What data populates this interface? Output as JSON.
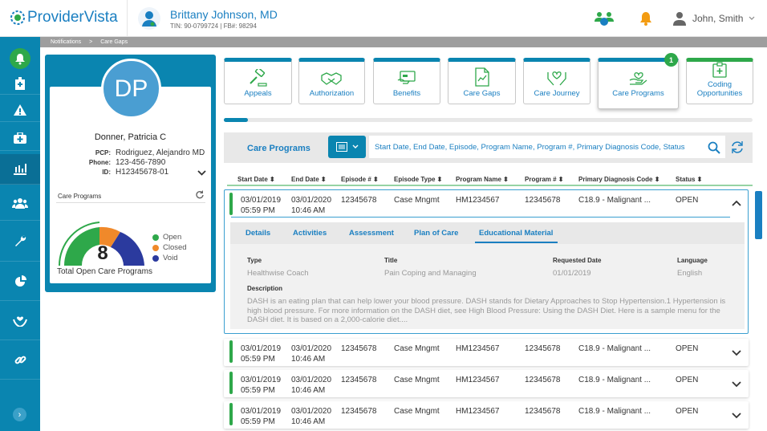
{
  "app": {
    "name": "ProviderVista"
  },
  "provider": {
    "name": "Brittany Johnson, MD",
    "ids": "TIN: 90-0799724 | FB#: 98294"
  },
  "user": {
    "name": "John, Smith"
  },
  "breadcrumb": [
    "Notifications",
    ">",
    "Care Gaps"
  ],
  "patient": {
    "initials": "DP",
    "name": "Donner, Patricia C",
    "pcp_label": "PCP:",
    "pcp": "Rodriguez, Alejandro MD",
    "phone_label": "Phone:",
    "phone": "123-456-7890",
    "id_label": "ID:",
    "id": "H12345678-01"
  },
  "care_programs_widget": {
    "title": "Care Programs",
    "total": "8",
    "total_label": "Total Open Care Programs",
    "legend": [
      {
        "label": "Open",
        "color": "#2ea84a"
      },
      {
        "label": "Closed",
        "color": "#f0892a"
      },
      {
        "label": "Void",
        "color": "#2b3a9e"
      }
    ]
  },
  "tabs": [
    {
      "label": "Appeals",
      "icon": "gavel-icon"
    },
    {
      "label": "Authorization",
      "icon": "handshake-icon"
    },
    {
      "label": "Benefits",
      "icon": "card-icon"
    },
    {
      "label": "Care Gaps",
      "icon": "document-chart-icon"
    },
    {
      "label": "Care Journey",
      "icon": "hands-icon"
    },
    {
      "label": "Care Programs",
      "icon": "heart-hand-icon"
    },
    {
      "label": "Coding Opportunities",
      "icon": "clipboard-plus-icon"
    }
  ],
  "care_programs_badge": "1",
  "filter": {
    "title": "Care Programs",
    "search_placeholder": "Start Date, End Date, Episode, Program Name, Program #, Primary Diagnosis Code, Status"
  },
  "columns": [
    "Start Date ⬍",
    "End Date ⬍",
    "Episode # ⬍",
    "Episode Type ⬍",
    "Program Name ⬍",
    "Program # ⬍",
    "Primary Diagnosis Code ⬍",
    "Status ⬍"
  ],
  "rows": [
    {
      "start_date": "03/01/2019",
      "start_time": "05:59 PM",
      "end_date": "03/01/2020",
      "end_time": "10:46 AM",
      "episode": "12345678",
      "type": "Case Mngmt",
      "program_name": "HM1234567",
      "program_no": "12345678",
      "diag": "C18.9 - Malignant ...",
      "status": "OPEN"
    },
    {
      "start_date": "03/01/2019",
      "start_time": "05:59 PM",
      "end_date": "03/01/2020",
      "end_time": "10:46 AM",
      "episode": "12345678",
      "type": "Case Mngmt",
      "program_name": "HM1234567",
      "program_no": "12345678",
      "diag": "C18.9 - Malignant ...",
      "status": "OPEN"
    },
    {
      "start_date": "03/01/2019",
      "start_time": "05:59 PM",
      "end_date": "03/01/2020",
      "end_time": "10:46 AM",
      "episode": "12345678",
      "type": "Case Mngmt",
      "program_name": "HM1234567",
      "program_no": "12345678",
      "diag": "C18.9 - Malignant ...",
      "status": "OPEN"
    },
    {
      "start_date": "03/01/2019",
      "start_time": "05:59 PM",
      "end_date": "03/01/2020",
      "end_time": "10:46 AM",
      "episode": "12345678",
      "type": "Case Mngmt",
      "program_name": "HM1234567",
      "program_no": "12345678",
      "diag": "C18.9 - Malignant ...",
      "status": "OPEN"
    }
  ],
  "detail_tabs": [
    "Details",
    "Activities",
    "Assessment",
    "Plan of Care",
    "Educational Material"
  ],
  "edu": {
    "type_label": "Type",
    "type": "Healthwise Coach",
    "title_label": "Title",
    "title": "Pain Coping and Managing",
    "requested_label": "Requested Date",
    "requested": "01/01/2019",
    "language_label": "Language",
    "language": "English",
    "description_label": "Description",
    "description": "DASH is an eating plan that can help lower your blood pressure. DASH stands for Dietary Approaches to Stop Hypertension.1 Hypertension is high blood pressure. For more information on the DASH diet, see High Blood Pressure: Using the DASH Diet. Here is a sample menu for the DASH diet. It is based on a 2,000-calorie diet...."
  }
}
